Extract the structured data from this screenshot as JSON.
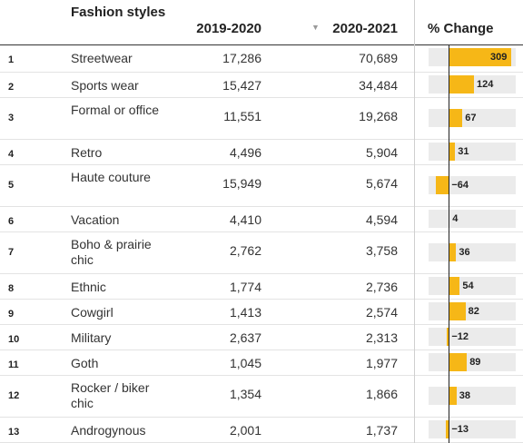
{
  "header": {
    "style_label": "Fashion styles",
    "y1_label": "2019-2020",
    "y2_label": "2020-2021",
    "sort_indicator": "▼",
    "change_label": "% Change"
  },
  "chart_data": {
    "type": "table",
    "columns": [
      "",
      "Fashion styles",
      "2019-2020",
      "2020-2021",
      "% Change"
    ],
    "bar_range": [
      -100,
      330
    ],
    "colors": {
      "bar": "#f6b717",
      "bar_background": "#ebebeb",
      "zero_line": "#222222"
    },
    "rows": [
      {
        "rank": "1",
        "style": "Streetwear",
        "y1": "17,286",
        "y2": "70,689",
        "change": 309,
        "change_label": "309"
      },
      {
        "rank": "2",
        "style": "Sports wear",
        "y1": "15,427",
        "y2": "34,484",
        "change": 124,
        "change_label": "124"
      },
      {
        "rank": "3",
        "style": "Formal or office",
        "y1": "11,551",
        "y2": "19,268",
        "change": 67,
        "change_label": "67"
      },
      {
        "rank": "4",
        "style": "Retro",
        "y1": "4,496",
        "y2": "5,904",
        "change": 31,
        "change_label": "31"
      },
      {
        "rank": "5",
        "style": "Haute couture",
        "y1": "15,949",
        "y2": "5,674",
        "change": -64,
        "change_label": "−64"
      },
      {
        "rank": "6",
        "style": "Vacation",
        "y1": "4,410",
        "y2": "4,594",
        "change": 4,
        "change_label": "4"
      },
      {
        "rank": "7",
        "style": "Boho & prairie chic",
        "y1": "2,762",
        "y2": "3,758",
        "change": 36,
        "change_label": "36"
      },
      {
        "rank": "8",
        "style": "Ethnic",
        "y1": "1,774",
        "y2": "2,736",
        "change": 54,
        "change_label": "54"
      },
      {
        "rank": "9",
        "style": "Cowgirl",
        "y1": "1,413",
        "y2": "2,574",
        "change": 82,
        "change_label": "82"
      },
      {
        "rank": "10",
        "style": "Military",
        "y1": "2,637",
        "y2": "2,313",
        "change": -12,
        "change_label": "−12"
      },
      {
        "rank": "11",
        "style": "Goth",
        "y1": "1,045",
        "y2": "1,977",
        "change": 89,
        "change_label": "89"
      },
      {
        "rank": "12",
        "style": "Rocker / biker chic",
        "y1": "1,354",
        "y2": "1,866",
        "change": 38,
        "change_label": "38"
      },
      {
        "rank": "13",
        "style": "Androgynous",
        "y1": "2,001",
        "y2": "1,737",
        "change": -13,
        "change_label": "−13"
      }
    ]
  }
}
